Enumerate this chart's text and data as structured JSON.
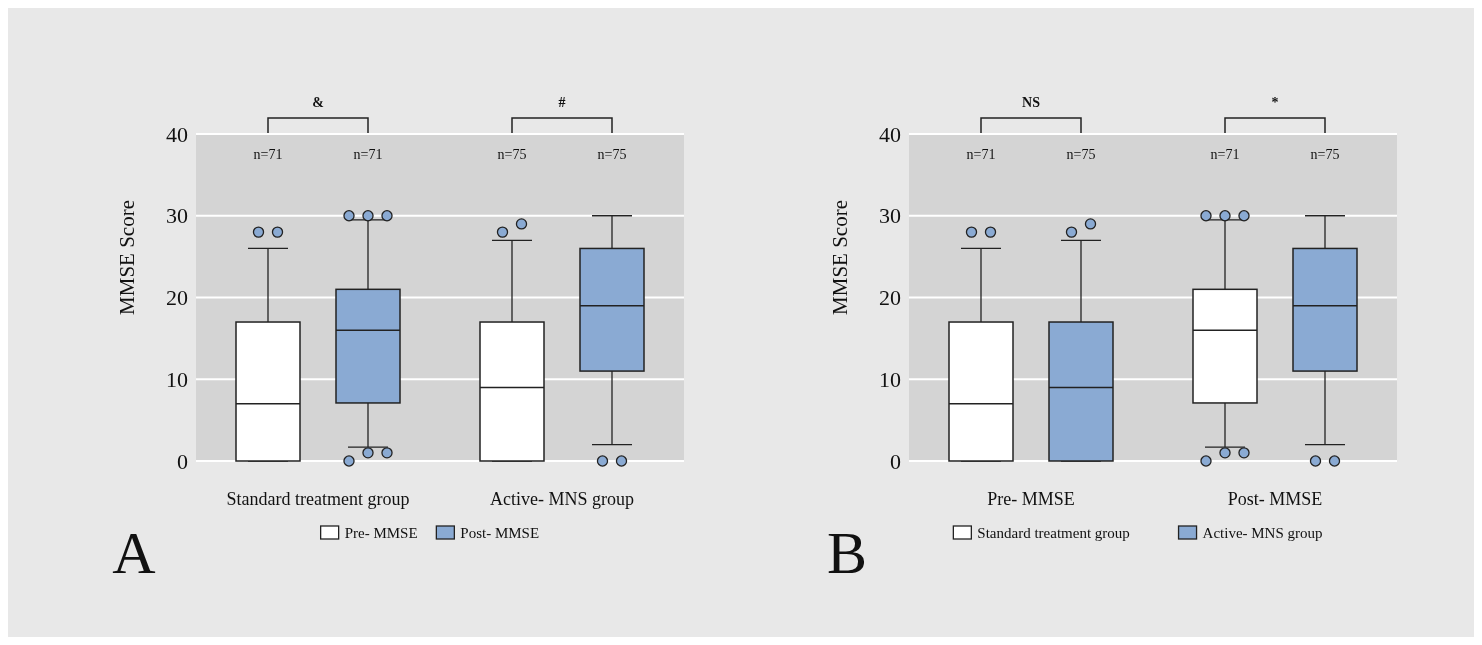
{
  "chart_data": [
    {
      "type": "box",
      "ylabel": "MMSE Score",
      "ylim": [
        0,
        40
      ],
      "yticks": [
        0,
        10,
        20,
        30,
        40
      ],
      "grid": "y",
      "legend": "bottom",
      "marker": "circle",
      "categories": [
        "Standard treatment group",
        "Active- MNS group"
      ],
      "series": [
        {
          "name": "Pre- MMSE",
          "color": "#ffffff",
          "boxes": [
            {
              "low": 0,
              "q1": 0,
              "median": 7,
              "q3": 17,
              "high": 26,
              "outliers": [
                28,
                28
              ]
            },
            {
              "low": 0,
              "q1": 0,
              "median": 9,
              "q3": 17,
              "high": 27,
              "outliers": [
                28,
                29
              ]
            }
          ]
        },
        {
          "name": "Post- MMSE",
          "color": "#8aaad3",
          "boxes": [
            {
              "low": 1.7,
              "q1": 7.1,
              "median": 16,
              "q3": 21,
              "high": 29.5,
              "outliers": [
                30,
                30,
                30,
                0,
                1,
                1
              ]
            },
            {
              "low": 2,
              "q1": 11,
              "median": 19,
              "q3": 26,
              "high": 30,
              "outliers": [
                0,
                0
              ]
            }
          ]
        }
      ],
      "annotations": [
        "&",
        "#",
        "n=71",
        "n=71",
        "n=75",
        "n=75",
        "A"
      ]
    },
    {
      "type": "box",
      "ylabel": "MMSE Score",
      "ylim": [
        0,
        40
      ],
      "yticks": [
        0,
        10,
        20,
        30,
        40
      ],
      "grid": "y",
      "legend": "bottom",
      "marker": "circle",
      "categories": [
        "Pre- MMSE",
        "Post- MMSE"
      ],
      "series": [
        {
          "name": "Standard treatment group",
          "color": "#ffffff",
          "boxes": [
            {
              "low": 0,
              "q1": 0,
              "median": 7,
              "q3": 17,
              "high": 26,
              "outliers": [
                28,
                28
              ]
            },
            {
              "low": 1.7,
              "q1": 7.1,
              "median": 16,
              "q3": 21,
              "high": 29.5,
              "outliers": [
                30,
                30,
                30,
                0,
                1,
                1
              ]
            }
          ]
        },
        {
          "name": "Active- MNS group",
          "color": "#8aaad3",
          "boxes": [
            {
              "low": 0,
              "q1": 0,
              "median": 9,
              "q3": 17,
              "high": 27,
              "outliers": [
                28,
                29
              ]
            },
            {
              "low": 2,
              "q1": 11,
              "median": 19,
              "q3": 26,
              "high": 30,
              "outliers": [
                0,
                0
              ]
            }
          ]
        }
      ],
      "annotations": [
        "NS",
        "*",
        "n=71",
        "n=75",
        "n=71",
        "n=75",
        "B"
      ]
    }
  ]
}
